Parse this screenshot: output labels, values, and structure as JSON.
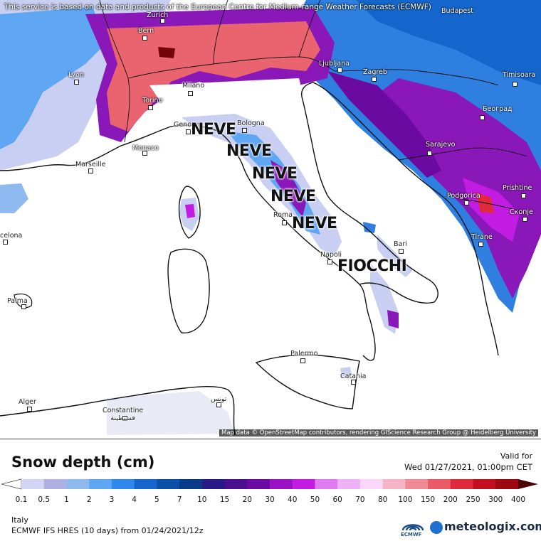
{
  "map": {
    "top_note": "This service is based on data and products of the European Centre for Medium-range Weather Forecasts (ECMWF)",
    "attribution": "Map data © OpenStreetMap contributors, rendering GIScience Research Group @ Heidelberg University",
    "cities": [
      {
        "name": "Zurich",
        "label": "Zurich"
      },
      {
        "name": "Budapest",
        "label": "Budapest"
      },
      {
        "name": "Bern",
        "label": "Bern"
      },
      {
        "name": "Lyon",
        "label": "Lyon"
      },
      {
        "name": "Milano",
        "label": "Milano"
      },
      {
        "name": "Ljubljana",
        "label": "Ljubljana"
      },
      {
        "name": "Zagreb",
        "label": "Zagreb"
      },
      {
        "name": "Timisoara",
        "label": "Timisoara"
      },
      {
        "name": "Torino",
        "label": "Torino"
      },
      {
        "name": "Beograd",
        "label": "Београд"
      },
      {
        "name": "Genova",
        "label": "Genova"
      },
      {
        "name": "Bologna",
        "label": "Bologna"
      },
      {
        "name": "Monaco",
        "label": "Monaco"
      },
      {
        "name": "Sarajevo",
        "label": "Sarajevo"
      },
      {
        "name": "Marseille",
        "label": "Marseille"
      },
      {
        "name": "Podgorica",
        "label": "Podgorica"
      },
      {
        "name": "Prishtine",
        "label": "Prishtine"
      },
      {
        "name": "Skopje",
        "label": "Скопје"
      },
      {
        "name": "Roma",
        "label": "Roma"
      },
      {
        "name": "Barcelona",
        "label": "celona"
      },
      {
        "name": "Tirana",
        "label": "Tirane"
      },
      {
        "name": "Bari",
        "label": "Bari"
      },
      {
        "name": "Napoli",
        "label": "Napoli"
      },
      {
        "name": "Palma",
        "label": "Palma"
      },
      {
        "name": "Palermo",
        "label": "Palermo"
      },
      {
        "name": "Catania",
        "label": "Catania"
      },
      {
        "name": "Alger",
        "label": "Alger"
      },
      {
        "name": "Constantine",
        "label": "Constantine\nقسنطينة"
      },
      {
        "name": "Tunis",
        "label": "تونس"
      }
    ],
    "annotations": [
      "NEVE",
      "NEVE",
      "NEVE",
      "NEVE",
      "NEVE",
      "FIOCCHI"
    ]
  },
  "legend": {
    "title": "Snow depth (cm)",
    "valid_label": "Valid for",
    "valid_value": "Wed 01/27/2021, 01:00pm CET",
    "ticks": [
      "0.1",
      "0.5",
      "1",
      "2",
      "3",
      "4",
      "5",
      "7",
      "10",
      "15",
      "20",
      "30",
      "40",
      "50",
      "60",
      "70",
      "80",
      "100",
      "150",
      "200",
      "250",
      "300",
      "400"
    ],
    "colors": [
      "#ffffff",
      "#d4d4f5",
      "#aeb0e2",
      "#8fbaf0",
      "#5fa6f3",
      "#2f88ea",
      "#1566cc",
      "#0a4fa8",
      "#083a87",
      "#2a1a86",
      "#4a0f8f",
      "#6b0aa0",
      "#9a12c4",
      "#c21be2",
      "#e07af0",
      "#f0b2f6",
      "#f9d6fa",
      "#f7b3c8",
      "#f08a94",
      "#ea5a67",
      "#df2a3d",
      "#c30f1f",
      "#9c0710",
      "#730408",
      "#4d0203"
    ]
  },
  "footer": {
    "region": "Italy",
    "model": "ECMWF IFS HRES (10 days) from 01/24/2021/12z",
    "ecmwf_logo": "ECMWF",
    "brand": "meteologix.com"
  },
  "colors": {
    "low_snow": "#c9cff2",
    "mid_snow": "#2f7fe0",
    "deep_snow": "#8a18b8",
    "very_deep_snow": "#ea6470",
    "land": "#ffffff",
    "border": "#111111"
  }
}
